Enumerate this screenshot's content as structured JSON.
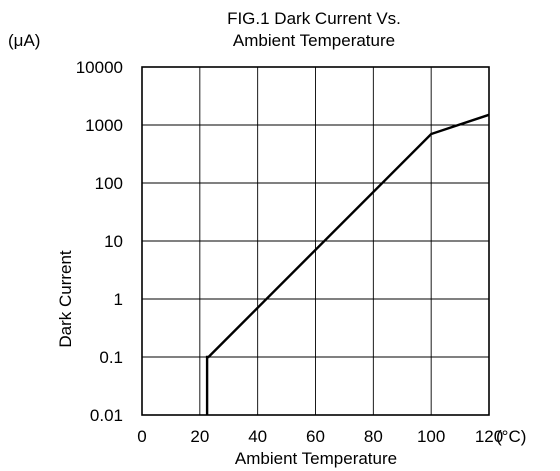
{
  "chart_data": {
    "type": "line",
    "title_line1": "FIG.1 Dark Current Vs.",
    "title_line2": "Ambient Temperature",
    "xlabel": "Ambient Temperature",
    "ylabel": "Dark Current",
    "y_unit": "(μA)",
    "x_unit": "(°C)",
    "xlim": [
      0,
      120
    ],
    "ylim": [
      0.01,
      10000
    ],
    "y_scale": "log",
    "grid": true,
    "x_ticks": [
      "0",
      "20",
      "40",
      "60",
      "80",
      "100",
      "120"
    ],
    "y_ticks": [
      "0.01",
      "0.1",
      "1",
      "10",
      "100",
      "1000",
      "10000"
    ],
    "series": [
      {
        "x": [
          22.5,
          22.5,
          23,
          100,
          120
        ],
        "y": [
          0.01,
          0.1,
          0.1,
          700,
          1500
        ]
      }
    ]
  }
}
